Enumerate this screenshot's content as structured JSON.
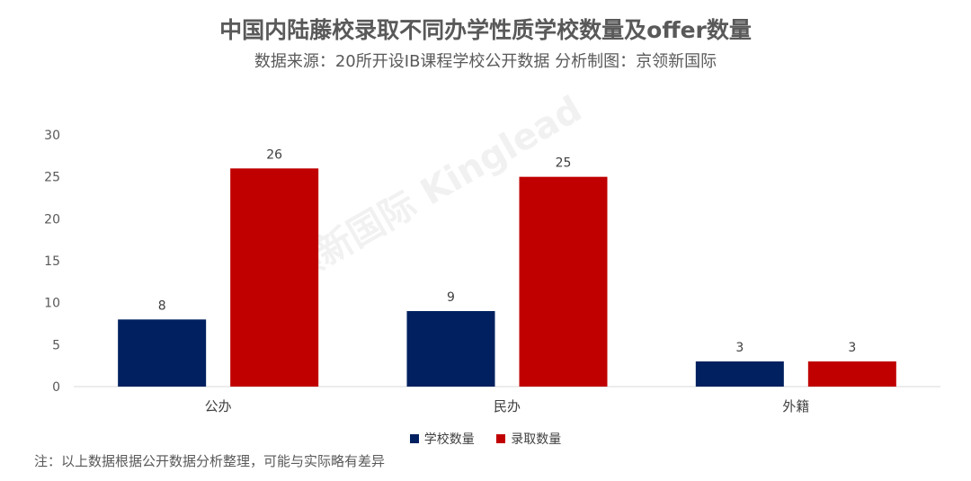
{
  "header": {
    "title": "中国内陆藤校录取不同办学性质学校数量及offer数量",
    "subtitle": "数据来源：20所开设IB课程学校公开数据 分析制图：京领新国际"
  },
  "watermark": "京领新国际 Kinglead",
  "note": "注：以上数据根据公开数据分析整理，可能与实际略有差异",
  "colors": {
    "school": "#002060",
    "offer": "#C00000",
    "axis": "#D9D9D9"
  },
  "chart_data": {
    "type": "bar",
    "title": "中国内陆藤校录取不同办学性质学校数量及offer数量",
    "subtitle": "数据来源：20所开设IB课程学校公开数据 分析制图：京领新国际",
    "categories": [
      "公办",
      "民办",
      "外籍"
    ],
    "series": [
      {
        "name": "学校数量",
        "values": [
          8,
          9,
          3
        ]
      },
      {
        "name": "录取数量",
        "values": [
          26,
          25,
          3
        ]
      }
    ],
    "ylim": [
      0,
      30
    ],
    "yticks": [
      0,
      5,
      10,
      15,
      20,
      25,
      30
    ],
    "grid": false,
    "legend": "bottom",
    "data_labels": true
  }
}
